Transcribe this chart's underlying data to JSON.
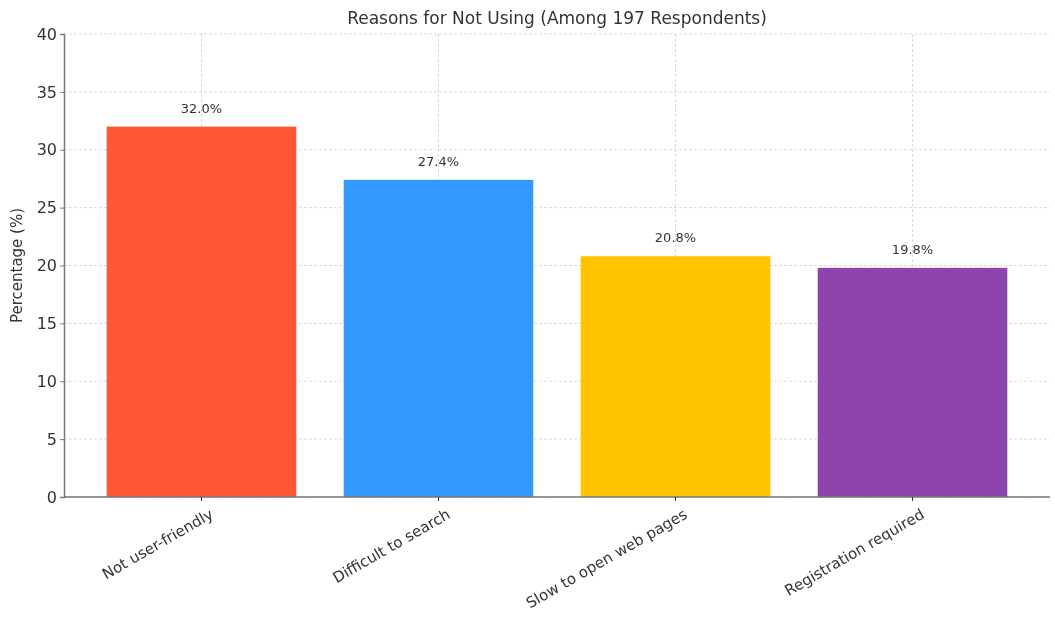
{
  "chart_data": {
    "type": "bar",
    "title": "Reasons for Not Using (Among 197 Respondents)",
    "ylabel": "Percentage (%)",
    "categories": [
      "Not user-friendly",
      "Difficult to search",
      "Slow to open web pages",
      "Registration required"
    ],
    "values": [
      32.0,
      27.4,
      20.8,
      19.8
    ],
    "colors": [
      "#ff5733",
      "#3399ff",
      "#ffc300",
      "#8e44ad"
    ],
    "value_labels": [
      "32.0%",
      "27.4%",
      "20.8%",
      "19.8%"
    ],
    "ylim": [
      0,
      40
    ],
    "yticks": [
      0,
      5,
      10,
      15,
      20,
      25,
      30,
      35,
      40
    ],
    "grid": true
  }
}
